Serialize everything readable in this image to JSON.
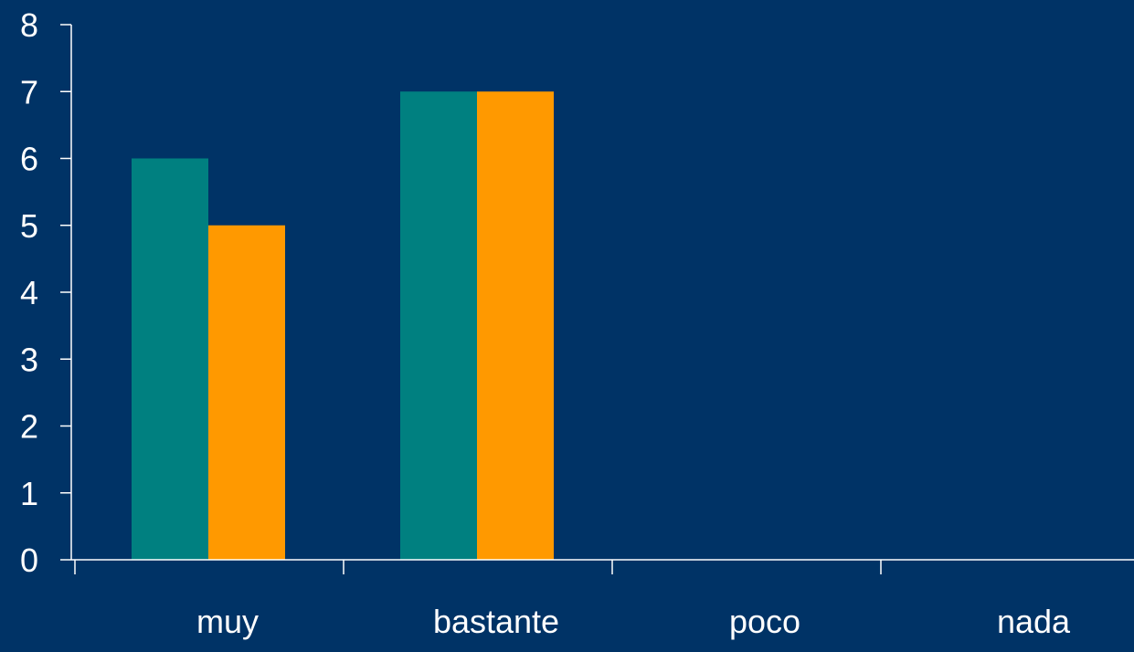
{
  "colors": {
    "background": "#003366",
    "axis": "#ffffff",
    "text": "#ffffff"
  },
  "chart_data": {
    "type": "bar",
    "categories": [
      "muy",
      "bastante",
      "poco",
      "nada"
    ],
    "series": [
      {
        "color": "#008080",
        "values": [
          6,
          7,
          0,
          0
        ]
      },
      {
        "color": "#ff9900",
        "values": [
          5,
          7,
          0,
          0
        ]
      }
    ],
    "y_ticks": [
      "0",
      "1",
      "2",
      "3",
      "4",
      "5",
      "6",
      "7",
      "8"
    ],
    "ylim": [
      0,
      8
    ],
    "title": "",
    "xlabel": "",
    "ylabel": "",
    "grid": false,
    "legend": "none"
  }
}
